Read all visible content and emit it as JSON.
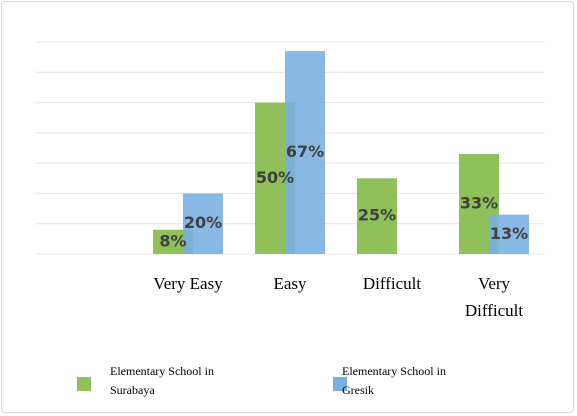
{
  "chart_data": {
    "type": "bar",
    "categories": [
      null,
      "Very Easy",
      "Easy",
      "Difficult",
      "Very Difficult"
    ],
    "series": [
      {
        "name": "Elementary School in Surabaya",
        "color": "#8fc05a",
        "values": [
          null,
          8,
          50,
          25,
          33
        ],
        "value_labels": [
          null,
          "8%",
          "50%",
          "25%",
          "33%"
        ]
      },
      {
        "name": "Elementary School in Gresik",
        "color": "#7aaee0",
        "values": [
          null,
          20,
          67,
          null,
          13
        ],
        "value_labels": [
          null,
          "20%",
          "67%",
          null,
          "13%"
        ]
      }
    ],
    "ylim": [
      0,
      70
    ],
    "yticks": [
      0,
      10,
      20,
      30,
      40,
      50,
      60,
      70
    ],
    "grid": true,
    "legend": "bottom"
  }
}
